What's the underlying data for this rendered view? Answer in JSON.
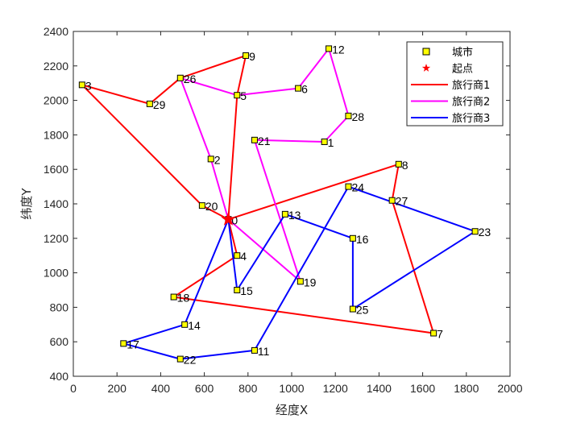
{
  "chart_data": {
    "type": "scatter",
    "xlabel": "经度X",
    "ylabel": "纬度Y",
    "xlim": [
      0,
      2000
    ],
    "ylim": [
      400,
      2400
    ],
    "xticks": [
      0,
      200,
      400,
      600,
      800,
      1000,
      1200,
      1400,
      1600,
      1800,
      2000
    ],
    "yticks": [
      400,
      600,
      800,
      1000,
      1200,
      1400,
      1600,
      1800,
      2000,
      2200,
      2400
    ],
    "grid": false,
    "legend_position": "top-right",
    "legend": [
      {
        "label": "城市",
        "kind": "city",
        "color": "#ffff00"
      },
      {
        "label": "起点",
        "kind": "start",
        "color": "#ff0000"
      },
      {
        "label": "旅行商1",
        "kind": "line",
        "color": "#ff0000"
      },
      {
        "label": "旅行商2",
        "kind": "line",
        "color": "#ff00ff"
      },
      {
        "label": "旅行商3",
        "kind": "line",
        "color": "#0000ff"
      }
    ],
    "start": {
      "id": 0,
      "x": 710,
      "y": 1310
    },
    "cities": [
      {
        "id": 0,
        "x": 710,
        "y": 1310
      },
      {
        "id": 1,
        "x": 1150,
        "y": 1760
      },
      {
        "id": 2,
        "x": 630,
        "y": 1660
      },
      {
        "id": 3,
        "x": 40,
        "y": 2090
      },
      {
        "id": 4,
        "x": 750,
        "y": 1100
      },
      {
        "id": 5,
        "x": 750,
        "y": 2030
      },
      {
        "id": 6,
        "x": 1030,
        "y": 2070
      },
      {
        "id": 7,
        "x": 1650,
        "y": 650
      },
      {
        "id": 8,
        "x": 1490,
        "y": 1630
      },
      {
        "id": 9,
        "x": 790,
        "y": 2260
      },
      {
        "id": 11,
        "x": 830,
        "y": 550
      },
      {
        "id": 12,
        "x": 1170,
        "y": 2300
      },
      {
        "id": 13,
        "x": 970,
        "y": 1340
      },
      {
        "id": 14,
        "x": 510,
        "y": 700
      },
      {
        "id": 15,
        "x": 750,
        "y": 900
      },
      {
        "id": 16,
        "x": 1280,
        "y": 1200
      },
      {
        "id": 17,
        "x": 230,
        "y": 590
      },
      {
        "id": 19,
        "x": 1040,
        "y": 950
      },
      {
        "id": 20,
        "x": 590,
        "y": 1390
      },
      {
        "id": 21,
        "x": 830,
        "y": 1770
      },
      {
        "id": 22,
        "x": 490,
        "y": 500
      },
      {
        "id": 23,
        "x": 1840,
        "y": 1240
      },
      {
        "id": 24,
        "x": 1260,
        "y": 1500
      },
      {
        "id": 25,
        "x": 1280,
        "y": 790
      },
      {
        "id": 26,
        "x": 490,
        "y": 2130
      },
      {
        "id": 27,
        "x": 1460,
        "y": 1420
      },
      {
        "id": 28,
        "x": 1260,
        "y": 1910
      },
      {
        "id": 29,
        "x": 350,
        "y": 1980
      },
      {
        "id": 18,
        "x": 460,
        "y": 860
      }
    ],
    "series": [
      {
        "name": "旅行商1",
        "color": "#ff0000",
        "route": [
          0,
          5,
          9,
          26,
          29,
          3,
          20,
          0,
          8,
          27,
          7,
          18,
          4,
          0
        ]
      },
      {
        "name": "旅行商2",
        "color": "#ff00ff",
        "route": [
          0,
          19,
          21,
          1,
          28,
          12,
          6,
          5,
          26,
          2,
          0
        ]
      },
      {
        "name": "旅行商3",
        "color": "#0000ff",
        "route": [
          0,
          15,
          13,
          16,
          25,
          23,
          24,
          11,
          22,
          17,
          14,
          0
        ]
      }
    ]
  }
}
